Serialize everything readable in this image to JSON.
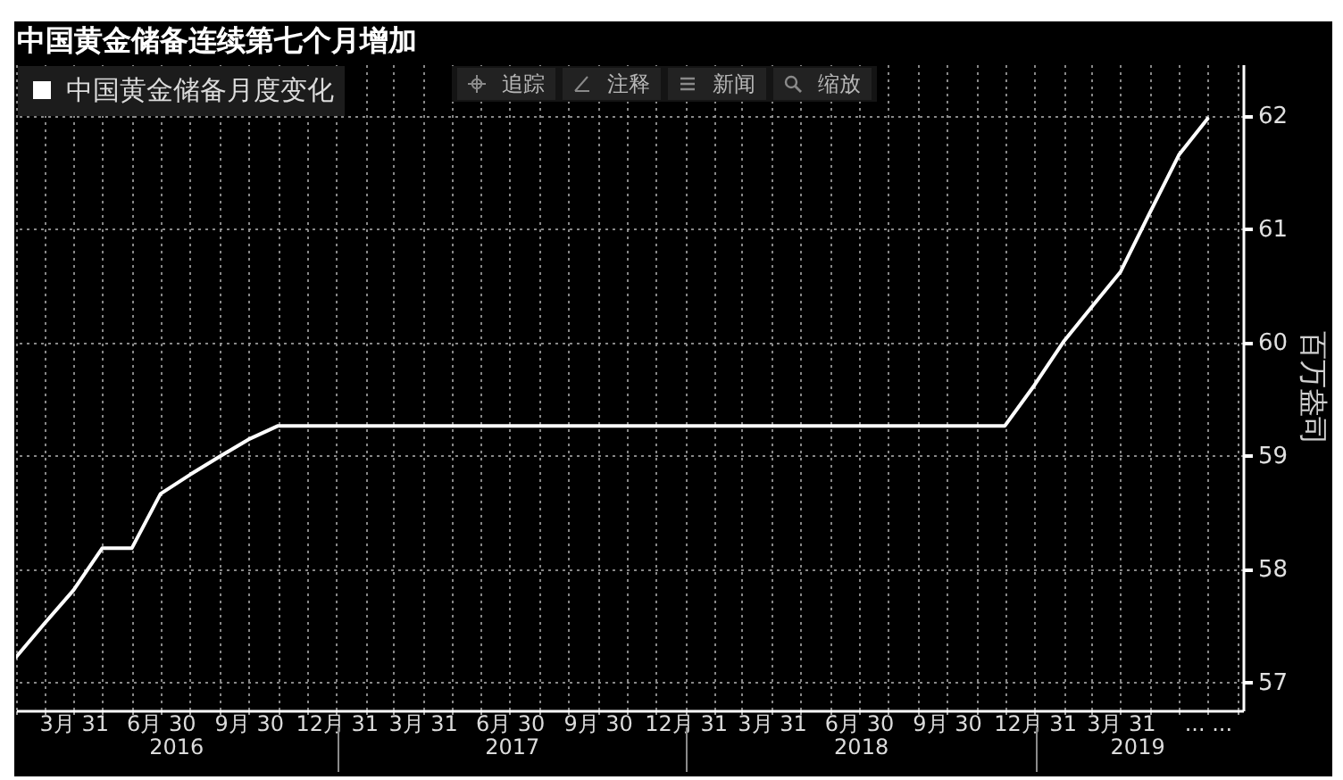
{
  "chart_data": {
    "type": "line",
    "title": "中国黄金储备连续第七个月增加",
    "ylabel": "百万盎司",
    "x": [
      "2016-01-31",
      "2016-02-29",
      "2016-03-31",
      "2016-04-30",
      "2016-05-31",
      "2016-06-30",
      "2016-07-31",
      "2016-08-31",
      "2016-09-30",
      "2016-10-31",
      "2016-11-30",
      "2016-12-31",
      "2017-01-31",
      "2017-02-28",
      "2017-03-31",
      "2017-04-30",
      "2017-05-31",
      "2017-06-30",
      "2017-07-31",
      "2017-08-31",
      "2017-09-30",
      "2017-10-31",
      "2017-11-30",
      "2017-12-31",
      "2018-01-31",
      "2018-02-28",
      "2018-03-31",
      "2018-04-30",
      "2018-05-31",
      "2018-06-30",
      "2018-07-31",
      "2018-08-31",
      "2018-09-30",
      "2018-10-31",
      "2018-11-30",
      "2018-12-31",
      "2019-01-31",
      "2019-02-28",
      "2019-03-31",
      "2019-04-30",
      "2019-05-31",
      "2019-06-30"
    ],
    "series": [
      {
        "name": "中国黄金储备月度变化",
        "color": "#ffffff",
        "values": [
          57.22,
          57.51,
          57.81,
          58.18,
          58.18,
          58.66,
          58.83,
          58.99,
          59.14,
          59.26,
          59.26,
          59.26,
          59.26,
          59.26,
          59.26,
          59.26,
          59.26,
          59.26,
          59.26,
          59.26,
          59.26,
          59.26,
          59.26,
          59.26,
          59.26,
          59.26,
          59.26,
          59.26,
          59.26,
          59.26,
          59.26,
          59.26,
          59.26,
          59.26,
          59.26,
          59.62,
          60.01,
          60.3,
          60.62,
          61.13,
          61.65,
          61.97
        ]
      }
    ],
    "xlim": [
      "2016-01-31",
      "2019-08-06"
    ],
    "xticks": [
      {
        "value": "2016-01-31",
        "label": null
      },
      {
        "value": "2016-02-29",
        "label": null
      },
      {
        "value": "2016-03-31",
        "label": "3月 31"
      },
      {
        "value": "2016-04-30",
        "label": null
      },
      {
        "value": "2016-05-31",
        "label": null
      },
      {
        "value": "2016-06-30",
        "label": "6月 30"
      },
      {
        "value": "2016-07-31",
        "label": null
      },
      {
        "value": "2016-08-31",
        "label": null
      },
      {
        "value": "2016-09-30",
        "label": "9月 30"
      },
      {
        "value": "2016-10-31",
        "label": null
      },
      {
        "value": "2016-11-30",
        "label": null
      },
      {
        "value": "2016-12-31",
        "label": "12月 31"
      },
      {
        "value": "2017-01-31",
        "label": null
      },
      {
        "value": "2017-02-28",
        "label": null
      },
      {
        "value": "2017-03-31",
        "label": "3月 31"
      },
      {
        "value": "2017-04-30",
        "label": null
      },
      {
        "value": "2017-05-31",
        "label": null
      },
      {
        "value": "2017-06-30",
        "label": "6月 30"
      },
      {
        "value": "2017-07-31",
        "label": null
      },
      {
        "value": "2017-08-31",
        "label": null
      },
      {
        "value": "2017-09-30",
        "label": "9月 30"
      },
      {
        "value": "2017-10-31",
        "label": null
      },
      {
        "value": "2017-11-30",
        "label": null
      },
      {
        "value": "2017-12-31",
        "label": "12月 31"
      },
      {
        "value": "2018-01-31",
        "label": null
      },
      {
        "value": "2018-02-28",
        "label": null
      },
      {
        "value": "2018-03-31",
        "label": "3月 31"
      },
      {
        "value": "2018-04-30",
        "label": null
      },
      {
        "value": "2018-05-31",
        "label": null
      },
      {
        "value": "2018-06-30",
        "label": "6月 30"
      },
      {
        "value": "2018-07-31",
        "label": null
      },
      {
        "value": "2018-08-31",
        "label": null
      },
      {
        "value": "2018-09-30",
        "label": "9月 30"
      },
      {
        "value": "2018-10-31",
        "label": null
      },
      {
        "value": "2018-11-30",
        "label": null
      },
      {
        "value": "2018-12-31",
        "label": "12月 31"
      },
      {
        "value": "2019-01-31",
        "label": null
      },
      {
        "value": "2019-02-28",
        "label": null
      },
      {
        "value": "2019-03-31",
        "label": "3月 31"
      },
      {
        "value": "2019-04-30",
        "label": null
      },
      {
        "value": "2019-05-31",
        "label": null
      },
      {
        "value": "2019-06-30",
        "label": "... ..."
      },
      {
        "value": "2019-07-31",
        "label": null
      }
    ],
    "x2lim": [
      "2016-01-31",
      "2019-08-06"
    ],
    "x2ticks": [
      {
        "value": "2016-07-16",
        "label": "2016"
      },
      {
        "value": "2017-01-01",
        "label": null
      },
      {
        "value": "2017-07-02",
        "label": "2017"
      },
      {
        "value": "2018-01-01",
        "label": null
      },
      {
        "value": "2018-07-02",
        "label": "2018"
      },
      {
        "value": "2019-01-01",
        "label": null
      },
      {
        "value": "2019-04-17",
        "label": "2019"
      }
    ],
    "ylim": [
      56.75,
      62.45
    ],
    "yticks": [
      57,
      58,
      59,
      60,
      61,
      62
    ],
    "grid": true,
    "legend": "top left",
    "line_style": "solid",
    "annotations": [
      "追踪",
      "注释",
      "新闻",
      "缩放"
    ]
  }
}
